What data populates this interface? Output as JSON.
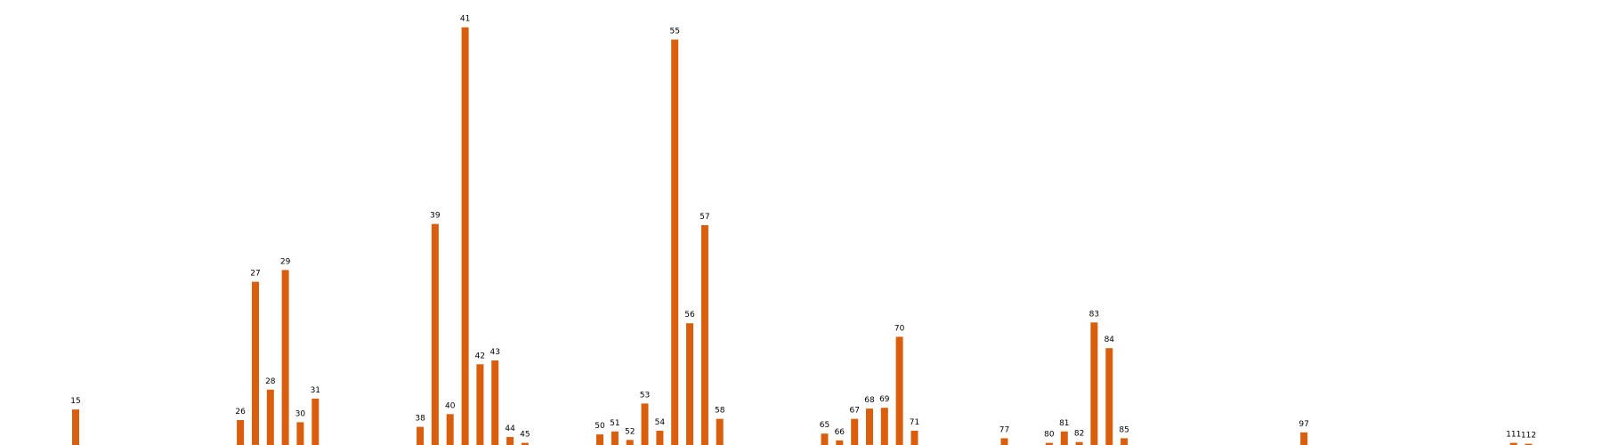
{
  "chart_data": {
    "type": "bar",
    "title": "",
    "xlabel": "",
    "ylabel": "",
    "bar_color": "#d95f0e",
    "text_color": "#000000",
    "background": "#ffffff",
    "axes_visible": false,
    "grid": false,
    "legend": "none",
    "x_range": [
      0,
      120
    ],
    "ylim": [
      0,
      100
    ],
    "categories": [
      15,
      26,
      27,
      28,
      29,
      30,
      31,
      38,
      39,
      40,
      41,
      42,
      43,
      44,
      45,
      50,
      51,
      52,
      53,
      54,
      55,
      56,
      57,
      58,
      65,
      66,
      67,
      68,
      69,
      70,
      71,
      77,
      80,
      81,
      82,
      83,
      84,
      85,
      97,
      111,
      112
    ],
    "labels": [
      "15",
      "26",
      "27",
      "28",
      "29",
      "30",
      "31",
      "38",
      "39",
      "40",
      "41",
      "42",
      "43",
      "44",
      "45",
      "50",
      "51",
      "52",
      "53",
      "54",
      "55",
      "56",
      "57",
      "58",
      "65",
      "66",
      "67",
      "68",
      "69",
      "70",
      "71",
      "77",
      "80",
      "81",
      "82",
      "83",
      "84",
      "85",
      "97",
      "111",
      "112"
    ],
    "values": [
      8.4,
      5.9,
      38.6,
      13.1,
      41.4,
      5.4,
      11.0,
      4.3,
      52.3,
      7.3,
      98.8,
      19.1,
      20.0,
      1.9,
      0.5,
      2.5,
      3.2,
      1.2,
      9.8,
      3.4,
      95.9,
      28.8,
      52.0,
      6.2,
      2.7,
      1.1,
      6.2,
      8.6,
      8.8,
      25.6,
      3.4,
      1.6,
      0.5,
      3.2,
      0.7,
      29.0,
      22.9,
      1.6,
      3.0,
      0.5,
      0.3
    ]
  }
}
